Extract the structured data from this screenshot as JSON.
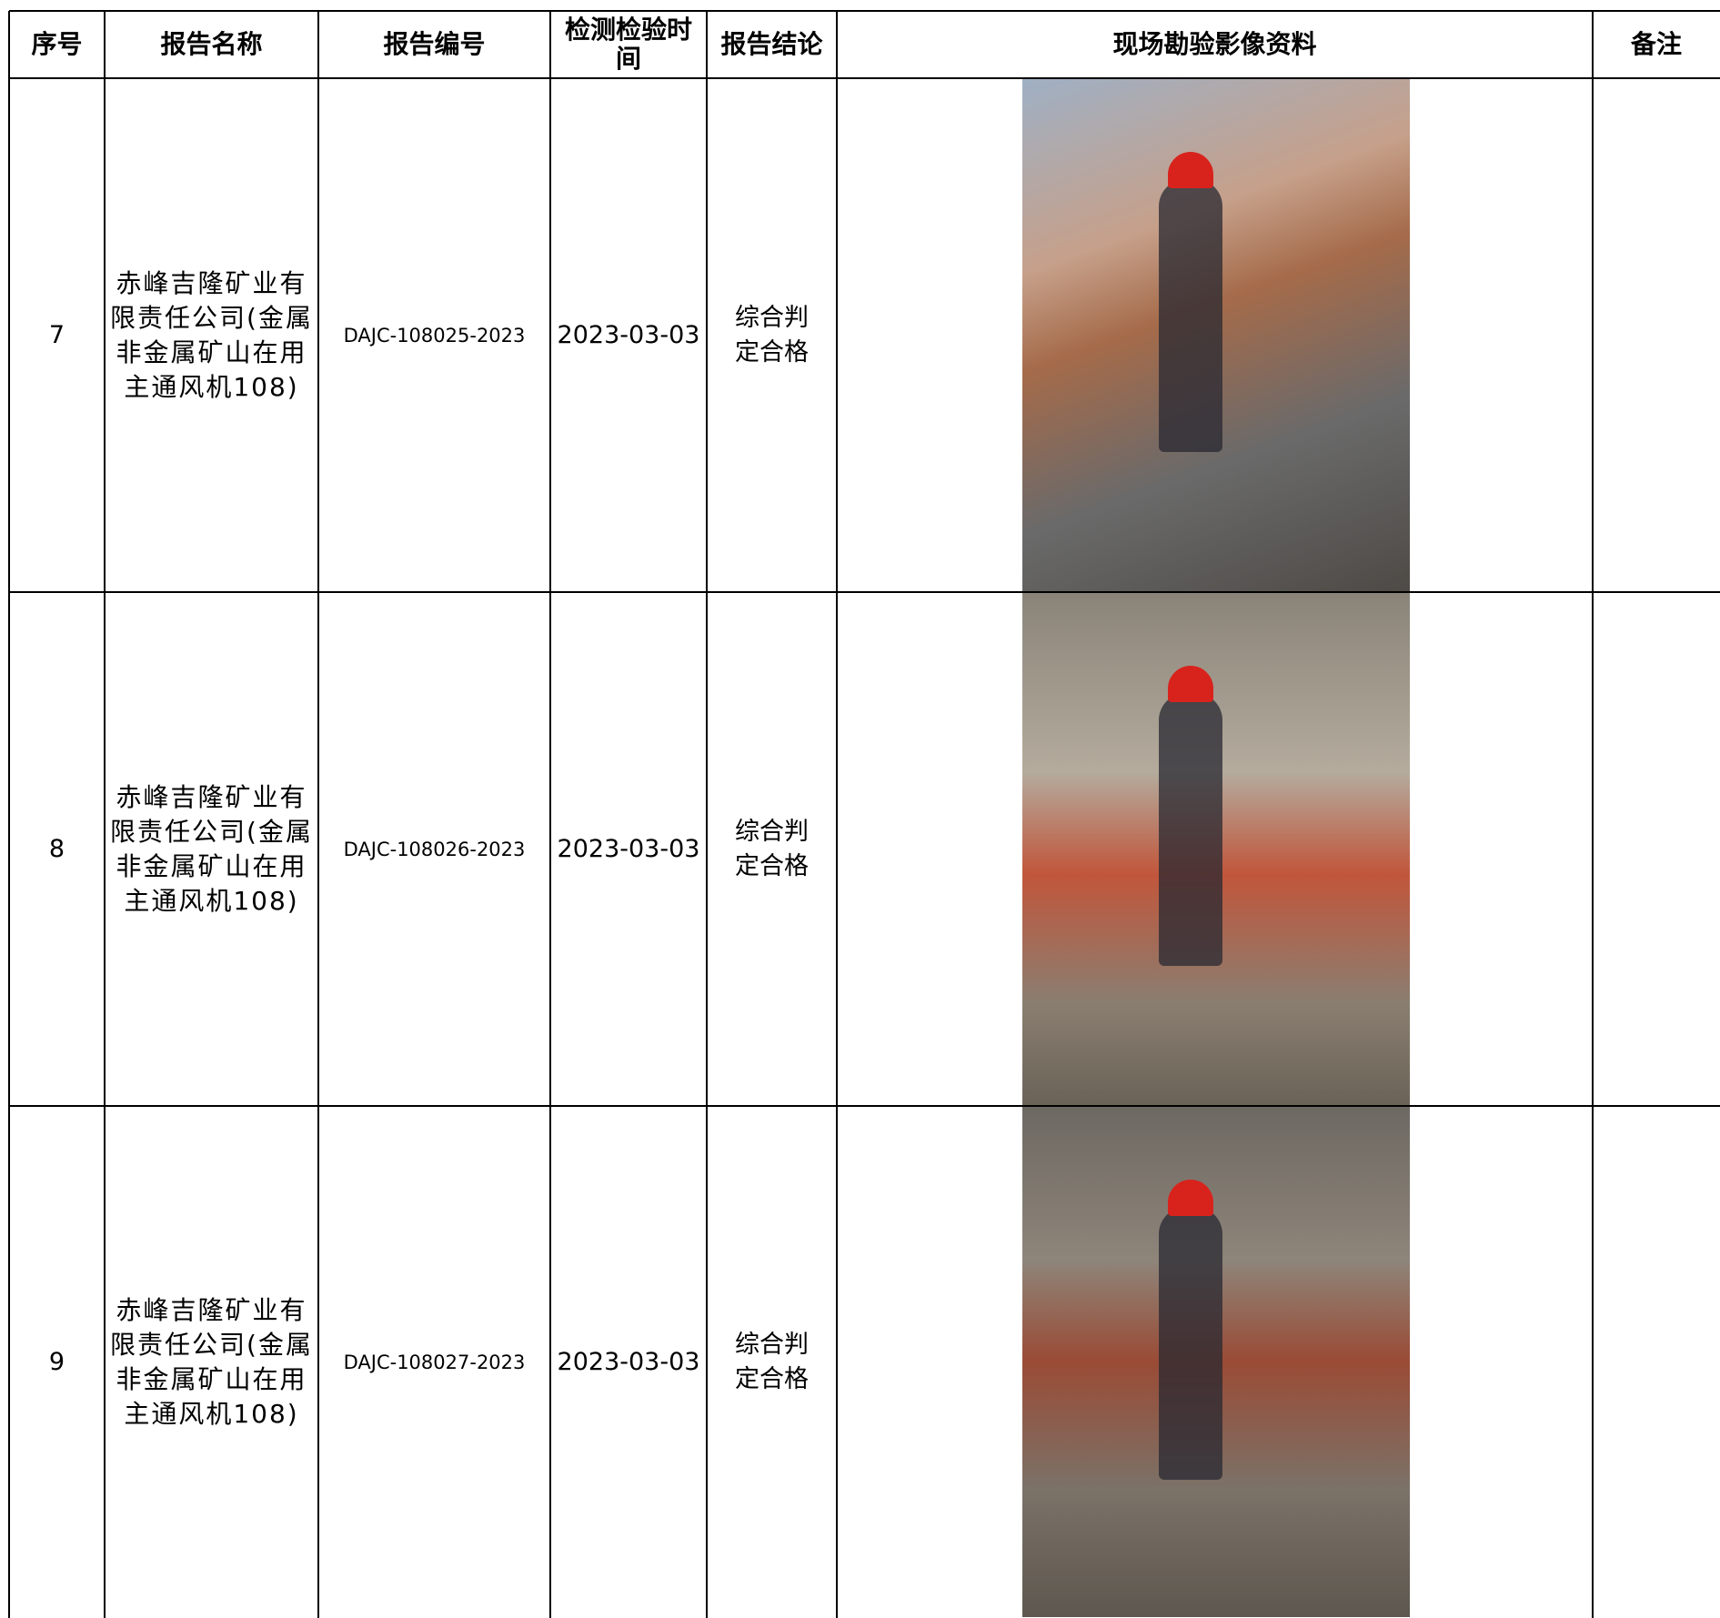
{
  "header": {
    "columns": [
      "序号",
      "报告名称",
      "报告编号",
      "检测检验时间",
      "报告结论",
      "现场勘验影像资料",
      "备注"
    ]
  },
  "table": {
    "rows": [
      {
        "no": "7",
        "name": "赤峰吉隆矿业有限责任公司(金属非金属矿山在用主通风机108)",
        "report_no": "DAJC-108025-2023",
        "date": "2023-03-03",
        "conclusion": "综合判定合格"
      },
      {
        "no": "8",
        "name": "赤峰吉隆矿业有限责任公司(金属非金属矿山在用主通风机108)",
        "report_no": "DAJC-108026-2023",
        "date": "2023-03-03",
        "conclusion": "综合判定合格"
      },
      {
        "no": "9",
        "name": "赤峰吉隆矿业有限责任公司(金属非金属矿山在用主通风机108)",
        "report_no": "DAJC-108027-2023",
        "date": "2023-03-03",
        "conclusion": "综合判定合格"
      }
    ]
  }
}
